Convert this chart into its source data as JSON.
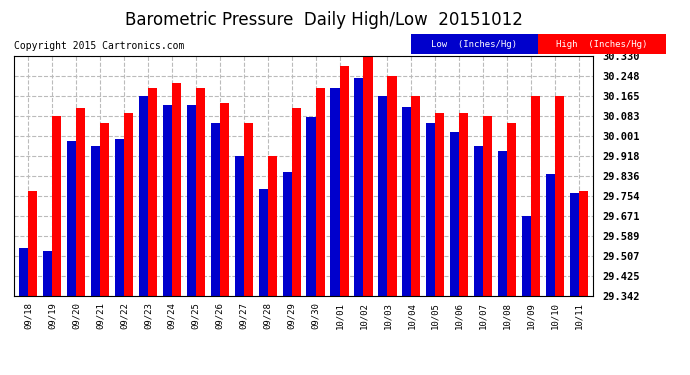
{
  "title": "Barometric Pressure  Daily High/Low  20151012",
  "copyright": "Copyright 2015 Cartronics.com",
  "legend_low": "Low  (Inches/Hg)",
  "legend_high": "High  (Inches/Hg)",
  "categories": [
    "09/18",
    "09/19",
    "09/20",
    "09/21",
    "09/22",
    "09/23",
    "09/24",
    "09/25",
    "09/26",
    "09/27",
    "09/28",
    "09/29",
    "09/30",
    "10/01",
    "10/02",
    "10/03",
    "10/04",
    "10/05",
    "10/06",
    "10/07",
    "10/08",
    "10/09",
    "10/10",
    "10/11"
  ],
  "low_values": [
    29.54,
    29.53,
    29.98,
    29.96,
    29.99,
    30.165,
    30.13,
    30.13,
    30.055,
    29.918,
    29.785,
    29.855,
    30.08,
    30.2,
    30.24,
    30.165,
    30.12,
    30.055,
    30.02,
    29.96,
    29.94,
    29.672,
    29.845,
    29.765
  ],
  "high_values": [
    29.775,
    30.083,
    30.118,
    30.055,
    30.097,
    30.2,
    30.218,
    30.2,
    30.138,
    30.055,
    29.918,
    30.118,
    30.2,
    30.29,
    30.342,
    30.248,
    30.165,
    30.097,
    30.097,
    30.083,
    30.055,
    30.165,
    30.165,
    29.775
  ],
  "ylim_min": 29.342,
  "ylim_max": 30.33,
  "yticks": [
    29.342,
    29.425,
    29.507,
    29.589,
    29.671,
    29.754,
    29.836,
    29.918,
    30.001,
    30.083,
    30.165,
    30.248,
    30.33
  ],
  "low_color": "#0000cc",
  "high_color": "#ff0000",
  "background_color": "#ffffff",
  "grid_color": "#bbbbbb",
  "title_fontsize": 12,
  "copyright_fontsize": 7,
  "bar_width": 0.38
}
